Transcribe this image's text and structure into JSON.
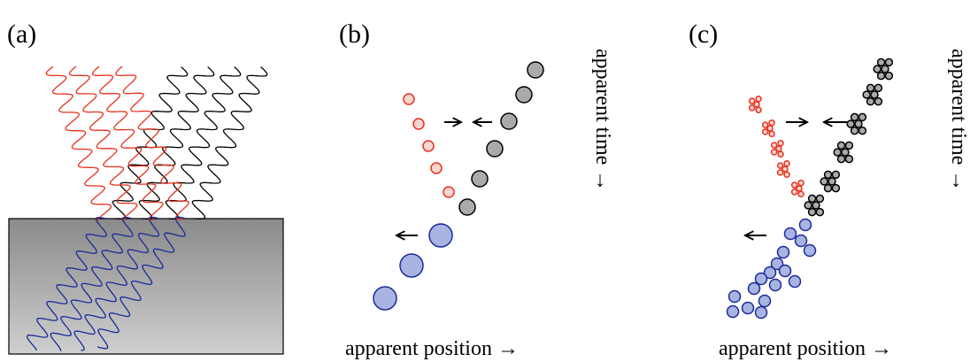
{
  "panels": [
    {
      "label": "(a)"
    },
    {
      "label": "(b)",
      "x_label": "apparent position →",
      "y_label": "apparent time →"
    },
    {
      "label": "(c)",
      "x_label": "apparent position →",
      "y_label": "apparent time →"
    }
  ]
}
